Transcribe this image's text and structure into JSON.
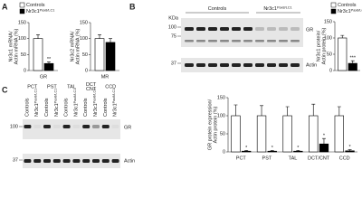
{
  "panels": [
    "A",
    "B",
    "C"
  ],
  "blots": [
    {
      "kda_label": "KDa",
      "markers": [
        100,
        75,
        37
      ],
      "groups": [
        {
          "text": "Controls"
        },
        {
          "text": "Nr3c1",
          "sup": "Pax8/LC1"
        }
      ],
      "bands": [
        "GR",
        "Actin"
      ]
    },
    {
      "markers": [
        100,
        37
      ],
      "segments": [
        [
          "PCT"
        ],
        [
          "PST"
        ],
        [
          "TAL"
        ],
        [
          "DCT",
          "CNT"
        ],
        [
          "CCD"
        ]
      ],
      "lanes": [
        {
          "text": "Controls"
        },
        {
          "text": "Nr3c1",
          "sup": "Pax8/LC1"
        }
      ],
      "bands": [
        "GR",
        "Actin"
      ]
    }
  ],
  "chart_data": [
    {
      "type": "bar",
      "ylabel": [
        "Nr3c1 mRNA/",
        "Actin mRNA (%)"
      ],
      "categories": [
        "GR"
      ],
      "series": [
        {
          "name": "Controls",
          "color": "#ffffff",
          "values": [
            100
          ],
          "errors": [
            12
          ]
        },
        {
          "name": "Nr3c1",
          "name_superscript": "Pax8/LC1",
          "color": "#000000",
          "values": [
            22
          ],
          "errors": [
            5
          ],
          "significance": [
            "**"
          ]
        }
      ],
      "ylim": [
        0,
        150
      ],
      "yticks": [
        0,
        50,
        100,
        150
      ],
      "legend": true
    },
    {
      "type": "bar",
      "ylabel": [
        "Nr3c2 mRNA/",
        "Actin mRNA (%)"
      ],
      "categories": [
        "MR"
      ],
      "series": [
        {
          "color": "#ffffff",
          "values": [
            100
          ],
          "errors": [
            12
          ]
        },
        {
          "color": "#000000",
          "values": [
            88
          ],
          "errors": [
            12
          ]
        }
      ],
      "ylim": [
        0,
        150
      ],
      "yticks": [
        0,
        50,
        100,
        150
      ],
      "legend": false
    },
    {
      "type": "bar",
      "ylabel": [
        "Nr3c1 protein/",
        "Actin protein (%)"
      ],
      "categories": [
        null
      ],
      "series": [
        {
          "name": "Controls",
          "color": "#ffffff",
          "values": [
            100
          ],
          "errors": [
            8
          ]
        },
        {
          "name": "Nr3c1",
          "name_superscript": "Pax8/LC1",
          "color": "#000000",
          "values": [
            22
          ],
          "errors": [
            8
          ],
          "significance": [
            "***"
          ]
        }
      ],
      "ylim": [
        0,
        150
      ],
      "yticks": [
        0,
        50,
        100,
        150
      ],
      "legend": true
    },
    {
      "type": "bar",
      "ylabel": [
        "GR protein expression/",
        "Actin protein (%)"
      ],
      "categories": [
        "PCT",
        "PST",
        "TAL",
        "DCT/CNT",
        "CCD"
      ],
      "series": [
        {
          "color": "#ffffff",
          "values": [
            100,
            100,
            100,
            100,
            100
          ],
          "errors": [
            30,
            28,
            25,
            32,
            25
          ]
        },
        {
          "color": "#000000",
          "values": [
            2,
            2,
            2,
            22,
            3
          ],
          "errors": [
            2,
            2,
            2,
            15,
            3
          ],
          "significance": [
            "*",
            "*",
            "*",
            "*",
            "*"
          ]
        }
      ],
      "ylim": [
        0,
        150
      ],
      "yticks": [
        0,
        50,
        100,
        150
      ],
      "legend": false
    }
  ]
}
